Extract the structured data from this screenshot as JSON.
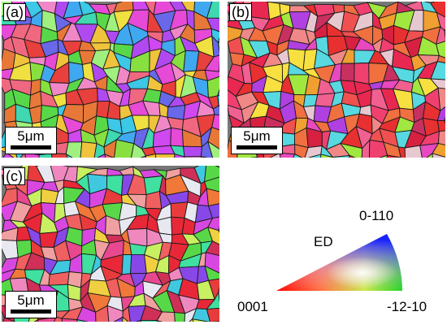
{
  "panels": [
    {
      "label": "(a)",
      "scale": "5μm",
      "palette": [
        "#e64ad6",
        "#b04af0",
        "#58d848",
        "#f0c33c",
        "#3cc8e6",
        "#e8403c",
        "#f088c8",
        "#88e040",
        "#f0e040",
        "#6868e8",
        "#40d8b0",
        "#f06880",
        "#a0f080",
        "#d048f0",
        "#e87838",
        "#40a8f0"
      ]
    },
    {
      "label": "(b)",
      "scale": "5μm",
      "palette": [
        "#e83030",
        "#f05050",
        "#e82850",
        "#f07040",
        "#f04070",
        "#d82040",
        "#f0a030",
        "#f8e040",
        "#e848c0",
        "#a0e840",
        "#58d8e0",
        "#f06090",
        "#c83060",
        "#e8c8d0",
        "#f08888",
        "#b040e0"
      ]
    },
    {
      "label": "(c)",
      "scale": "5μm",
      "palette": [
        "#e83c3c",
        "#e84890",
        "#f07838",
        "#d03058",
        "#f0d040",
        "#58d848",
        "#40c8e0",
        "#d848e0",
        "#f0a0a0",
        "#e8e8f0",
        "#8848e8",
        "#f06060",
        "#c8f060",
        "#f088c0",
        "#e82838",
        "#40e0a0"
      ]
    }
  ],
  "legend": {
    "title": "ED",
    "corners": {
      "left": "0001",
      "top": "0-110",
      "right": "-12-10"
    }
  }
}
